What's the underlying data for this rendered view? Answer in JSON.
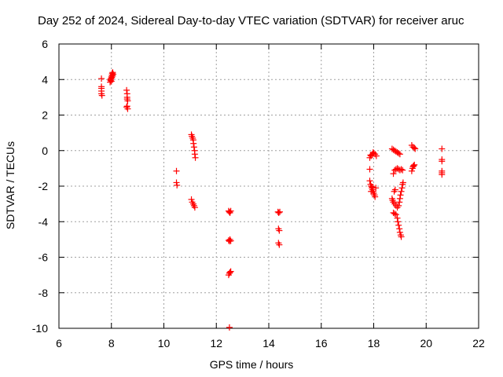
{
  "chart_data": {
    "type": "scatter",
    "title": "Day 252 of 2024, Sidereal Day-to-day VTEC variation (SDTVAR) for receiver aruc",
    "xlabel": "GPS time / hours",
    "ylabel": "SDTVAR / TECUs",
    "xlim": [
      6,
      22
    ],
    "ylim": [
      -10,
      6
    ],
    "xticks": [
      "6",
      "8",
      "10",
      "12",
      "14",
      "16",
      "18",
      "20",
      "22"
    ],
    "yticks": [
      "6",
      "4",
      "2",
      "0",
      "-2",
      "-4",
      "-6",
      "-8",
      "-10"
    ],
    "grid": true,
    "marker": "+",
    "color": "#ff0000",
    "series": [
      {
        "name": "SDTVAR",
        "points": [
          [
            7.62,
            4.05
          ],
          [
            7.62,
            3.6
          ],
          [
            7.62,
            3.5
          ],
          [
            7.62,
            3.35
          ],
          [
            7.62,
            3.2
          ],
          [
            7.64,
            3.1
          ],
          [
            7.95,
            3.85
          ],
          [
            7.97,
            3.95
          ],
          [
            7.98,
            4.05
          ],
          [
            8.0,
            4.15
          ],
          [
            8.02,
            4.25
          ],
          [
            8.03,
            4.35
          ],
          [
            8.05,
            4.4
          ],
          [
            7.97,
            4.0
          ],
          [
            8.0,
            3.9
          ],
          [
            8.02,
            4.1
          ],
          [
            8.05,
            4.2
          ],
          [
            8.07,
            4.3
          ],
          [
            8.58,
            3.4
          ],
          [
            8.6,
            3.2
          ],
          [
            8.6,
            3.0
          ],
          [
            8.6,
            2.9
          ],
          [
            8.62,
            2.8
          ],
          [
            8.6,
            2.5
          ],
          [
            8.62,
            2.35
          ],
          [
            8.58,
            2.45
          ],
          [
            10.48,
            -1.15
          ],
          [
            10.48,
            -1.8
          ],
          [
            10.5,
            -1.95
          ],
          [
            11.05,
            0.9
          ],
          [
            11.07,
            0.8
          ],
          [
            11.1,
            0.7
          ],
          [
            11.12,
            0.6
          ],
          [
            11.13,
            0.4
          ],
          [
            11.15,
            0.2
          ],
          [
            11.17,
            0.0
          ],
          [
            11.18,
            -0.2
          ],
          [
            11.2,
            -0.4
          ],
          [
            11.05,
            -2.75
          ],
          [
            11.08,
            -2.9
          ],
          [
            11.12,
            -3.0
          ],
          [
            11.15,
            -3.1
          ],
          [
            11.18,
            -3.2
          ],
          [
            12.47,
            -3.4
          ],
          [
            12.5,
            -3.45
          ],
          [
            12.52,
            -3.5
          ],
          [
            12.55,
            -3.4
          ],
          [
            12.47,
            -5.05
          ],
          [
            12.5,
            -5.1
          ],
          [
            12.52,
            -5.0
          ],
          [
            12.55,
            -5.08
          ],
          [
            12.47,
            -7.0
          ],
          [
            12.5,
            -6.9
          ],
          [
            12.52,
            -6.85
          ],
          [
            12.55,
            -6.8
          ],
          [
            12.5,
            -9.95
          ],
          [
            14.35,
            -3.45
          ],
          [
            14.38,
            -3.5
          ],
          [
            14.42,
            -3.45
          ],
          [
            14.37,
            -4.4
          ],
          [
            14.4,
            -4.5
          ],
          [
            14.37,
            -5.2
          ],
          [
            14.4,
            -5.3
          ],
          [
            17.85,
            -1.05
          ],
          [
            17.85,
            -0.4
          ],
          [
            17.9,
            -0.3
          ],
          [
            17.95,
            -0.2
          ],
          [
            18.0,
            -0.15
          ],
          [
            18.05,
            -0.2
          ],
          [
            18.1,
            -0.3
          ],
          [
            17.88,
            -0.25
          ],
          [
            17.98,
            -0.1
          ],
          [
            17.85,
            -1.7
          ],
          [
            17.88,
            -1.9
          ],
          [
            17.9,
            -2.0
          ],
          [
            17.93,
            -2.1
          ],
          [
            17.95,
            -2.2
          ],
          [
            17.98,
            -2.3
          ],
          [
            18.0,
            -2.4
          ],
          [
            18.03,
            -2.5
          ],
          [
            18.05,
            -2.6
          ],
          [
            18.08,
            -2.1
          ],
          [
            17.9,
            -2.3
          ],
          [
            17.95,
            -2.05
          ],
          [
            18.7,
            0.1
          ],
          [
            18.75,
            0.05
          ],
          [
            18.8,
            0.0
          ],
          [
            18.85,
            -0.05
          ],
          [
            18.9,
            -0.1
          ],
          [
            18.95,
            -0.15
          ],
          [
            19.0,
            -0.2
          ],
          [
            18.75,
            -1.3
          ],
          [
            18.8,
            -1.1
          ],
          [
            18.85,
            -1.05
          ],
          [
            18.9,
            -1.0
          ],
          [
            18.95,
            -1.05
          ],
          [
            19.0,
            -1.1
          ],
          [
            19.05,
            -1.05
          ],
          [
            19.1,
            -1.1
          ],
          [
            18.7,
            -2.7
          ],
          [
            18.72,
            -2.8
          ],
          [
            18.75,
            -2.9
          ],
          [
            18.8,
            -3.0
          ],
          [
            18.85,
            -3.1
          ],
          [
            18.9,
            -3.2
          ],
          [
            18.95,
            -3.1
          ],
          [
            18.98,
            -2.9
          ],
          [
            19.0,
            -2.7
          ],
          [
            19.02,
            -2.5
          ],
          [
            19.05,
            -2.3
          ],
          [
            19.08,
            -2.1
          ],
          [
            19.1,
            -1.9
          ],
          [
            19.12,
            -1.8
          ],
          [
            18.78,
            -2.3
          ],
          [
            18.82,
            -2.2
          ],
          [
            18.75,
            -3.5
          ],
          [
            18.8,
            -3.55
          ],
          [
            18.85,
            -3.6
          ],
          [
            18.9,
            -3.8
          ],
          [
            18.92,
            -4.0
          ],
          [
            18.95,
            -4.2
          ],
          [
            18.98,
            -4.4
          ],
          [
            19.0,
            -4.6
          ],
          [
            19.03,
            -4.75
          ],
          [
            19.05,
            -4.85
          ],
          [
            19.45,
            0.3
          ],
          [
            19.5,
            0.2
          ],
          [
            19.55,
            0.15
          ],
          [
            19.58,
            0.1
          ],
          [
            19.45,
            -1.15
          ],
          [
            19.48,
            -1.0
          ],
          [
            19.5,
            -0.9
          ],
          [
            19.52,
            -0.85
          ],
          [
            19.55,
            -0.8
          ],
          [
            20.6,
            0.1
          ],
          [
            20.6,
            -0.5
          ],
          [
            20.6,
            -0.6
          ],
          [
            20.6,
            -1.15
          ],
          [
            20.6,
            -1.25
          ],
          [
            20.6,
            -1.35
          ]
        ]
      }
    ]
  }
}
